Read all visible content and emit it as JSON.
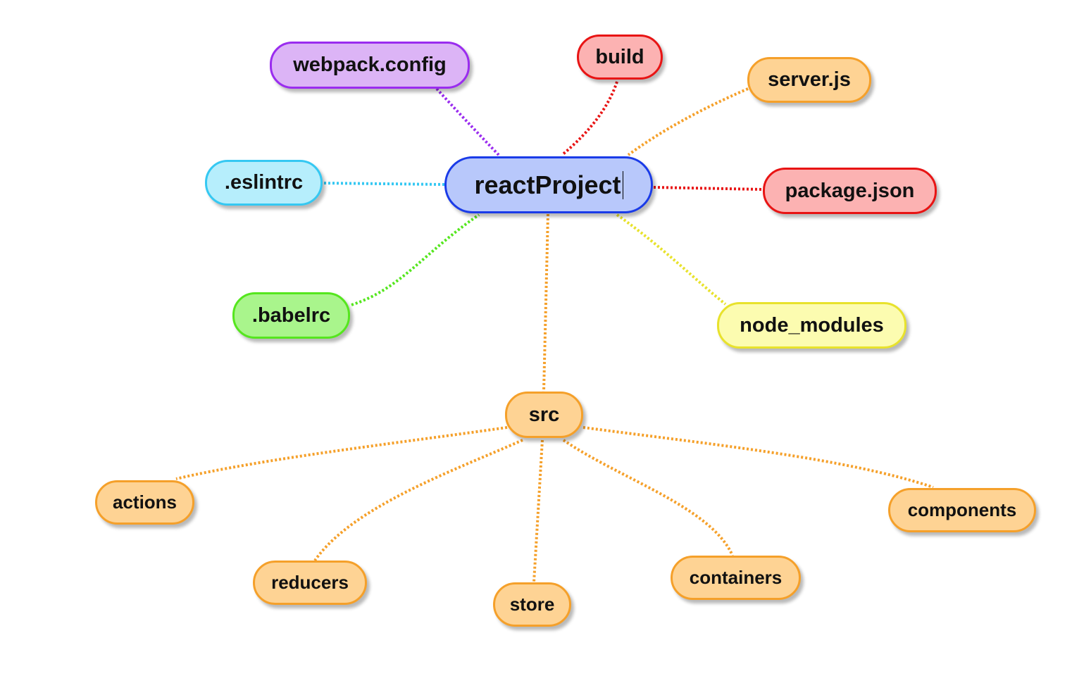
{
  "mindmap": {
    "root": {
      "label": "reactProject",
      "fill": "#b8c8fb",
      "border": "#1a3be8"
    },
    "nodes": [
      {
        "id": "webpack-config",
        "label": "webpack.config",
        "fill": "#dcb4f6",
        "border": "#9a2cef",
        "link": "#9a2cef"
      },
      {
        "id": "build",
        "label": "build",
        "fill": "#fcb2b2",
        "border": "#e81414",
        "link": "#e81414"
      },
      {
        "id": "server-js",
        "label": "server.js",
        "fill": "#fed394",
        "border": "#f5a02a",
        "link": "#f5a02a"
      },
      {
        "id": "eslintrc",
        "label": ".eslintrc",
        "fill": "#b6eefc",
        "border": "#35c8f2",
        "link": "#35c8f2"
      },
      {
        "id": "package-json",
        "label": "package.json",
        "fill": "#fcb2b2",
        "border": "#e81414",
        "link": "#e81414"
      },
      {
        "id": "babelrc",
        "label": ".babelrc",
        "fill": "#a9f58c",
        "border": "#55e61e",
        "link": "#55e61e"
      },
      {
        "id": "node-modules",
        "label": "node_modules",
        "fill": "#fcfcb0",
        "border": "#e8e22c",
        "link": "#e8e22c"
      },
      {
        "id": "src",
        "label": "src",
        "fill": "#fed394",
        "border": "#f5a02a",
        "link": "#f5a02a"
      }
    ],
    "src_children": [
      {
        "id": "actions",
        "label": "actions"
      },
      {
        "id": "reducers",
        "label": "reducers"
      },
      {
        "id": "store",
        "label": "store"
      },
      {
        "id": "containers",
        "label": "containers"
      },
      {
        "id": "components",
        "label": "components"
      }
    ],
    "src_child_colors": {
      "fill": "#fed394",
      "border": "#f5a02a",
      "link": "#f5a02a"
    }
  }
}
